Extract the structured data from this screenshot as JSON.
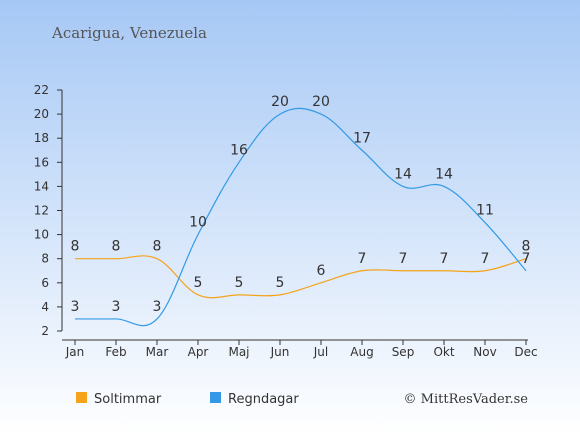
{
  "location": "Acarigua, Venezuela",
  "credit": "© MittResVader.se",
  "colors": {
    "bg_top": "#a6c8f5",
    "bg_bottom": "#ffffff",
    "sun": "#f5a31a",
    "rain": "#3399e6"
  },
  "chart_data": {
    "type": "line",
    "categories": [
      "Jan",
      "Feb",
      "Mar",
      "Apr",
      "Maj",
      "Jun",
      "Jul",
      "Aug",
      "Sep",
      "Okt",
      "Nov",
      "Dec"
    ],
    "ylim": [
      2,
      22
    ],
    "yticks": [
      2,
      4,
      6,
      8,
      10,
      12,
      14,
      16,
      18,
      20,
      22
    ],
    "grid": false,
    "legend_placement": "bottom-left",
    "series": [
      {
        "name": "Soltimmar",
        "color": "#f5a31a",
        "values": [
          8,
          8,
          8,
          5,
          5,
          5,
          6,
          7,
          7,
          7,
          7,
          8
        ]
      },
      {
        "name": "Regndagar",
        "color": "#3399e6",
        "values": [
          3,
          3,
          3,
          10,
          16,
          20,
          20,
          17,
          14,
          14,
          11,
          7
        ]
      }
    ]
  }
}
